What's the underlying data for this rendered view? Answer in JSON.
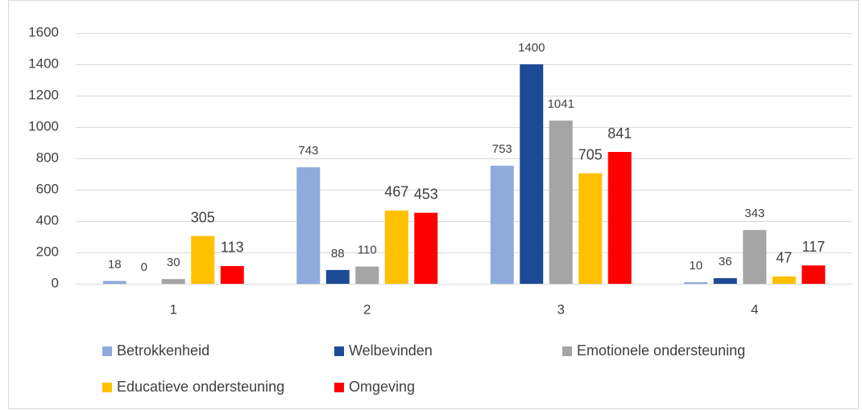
{
  "chart_data": {
    "type": "bar",
    "categories": [
      "1",
      "2",
      "3",
      "4"
    ],
    "series": [
      {
        "name": "Betrokkenheid",
        "color": "#8faadc",
        "values": [
          18,
          743,
          753,
          10
        ]
      },
      {
        "name": "Welbevinden",
        "color": "#1c4a94",
        "values": [
          0,
          88,
          1400,
          36
        ]
      },
      {
        "name": "Emotionele ondersteuning",
        "color": "#a5a5a5",
        "values": [
          30,
          110,
          1041,
          343
        ]
      },
      {
        "name": "Educatieve ondersteuning",
        "color": "#ffc000",
        "values": [
          305,
          467,
          705,
          47
        ]
      },
      {
        "name": "Omgeving",
        "color": "#ff0000",
        "values": [
          113,
          453,
          841,
          117
        ]
      }
    ],
    "ylim": [
      0,
      1600
    ],
    "yticks": [
      0,
      200,
      400,
      600,
      800,
      1000,
      1200,
      1400,
      1600
    ],
    "grid": true,
    "legend": "bottom"
  }
}
